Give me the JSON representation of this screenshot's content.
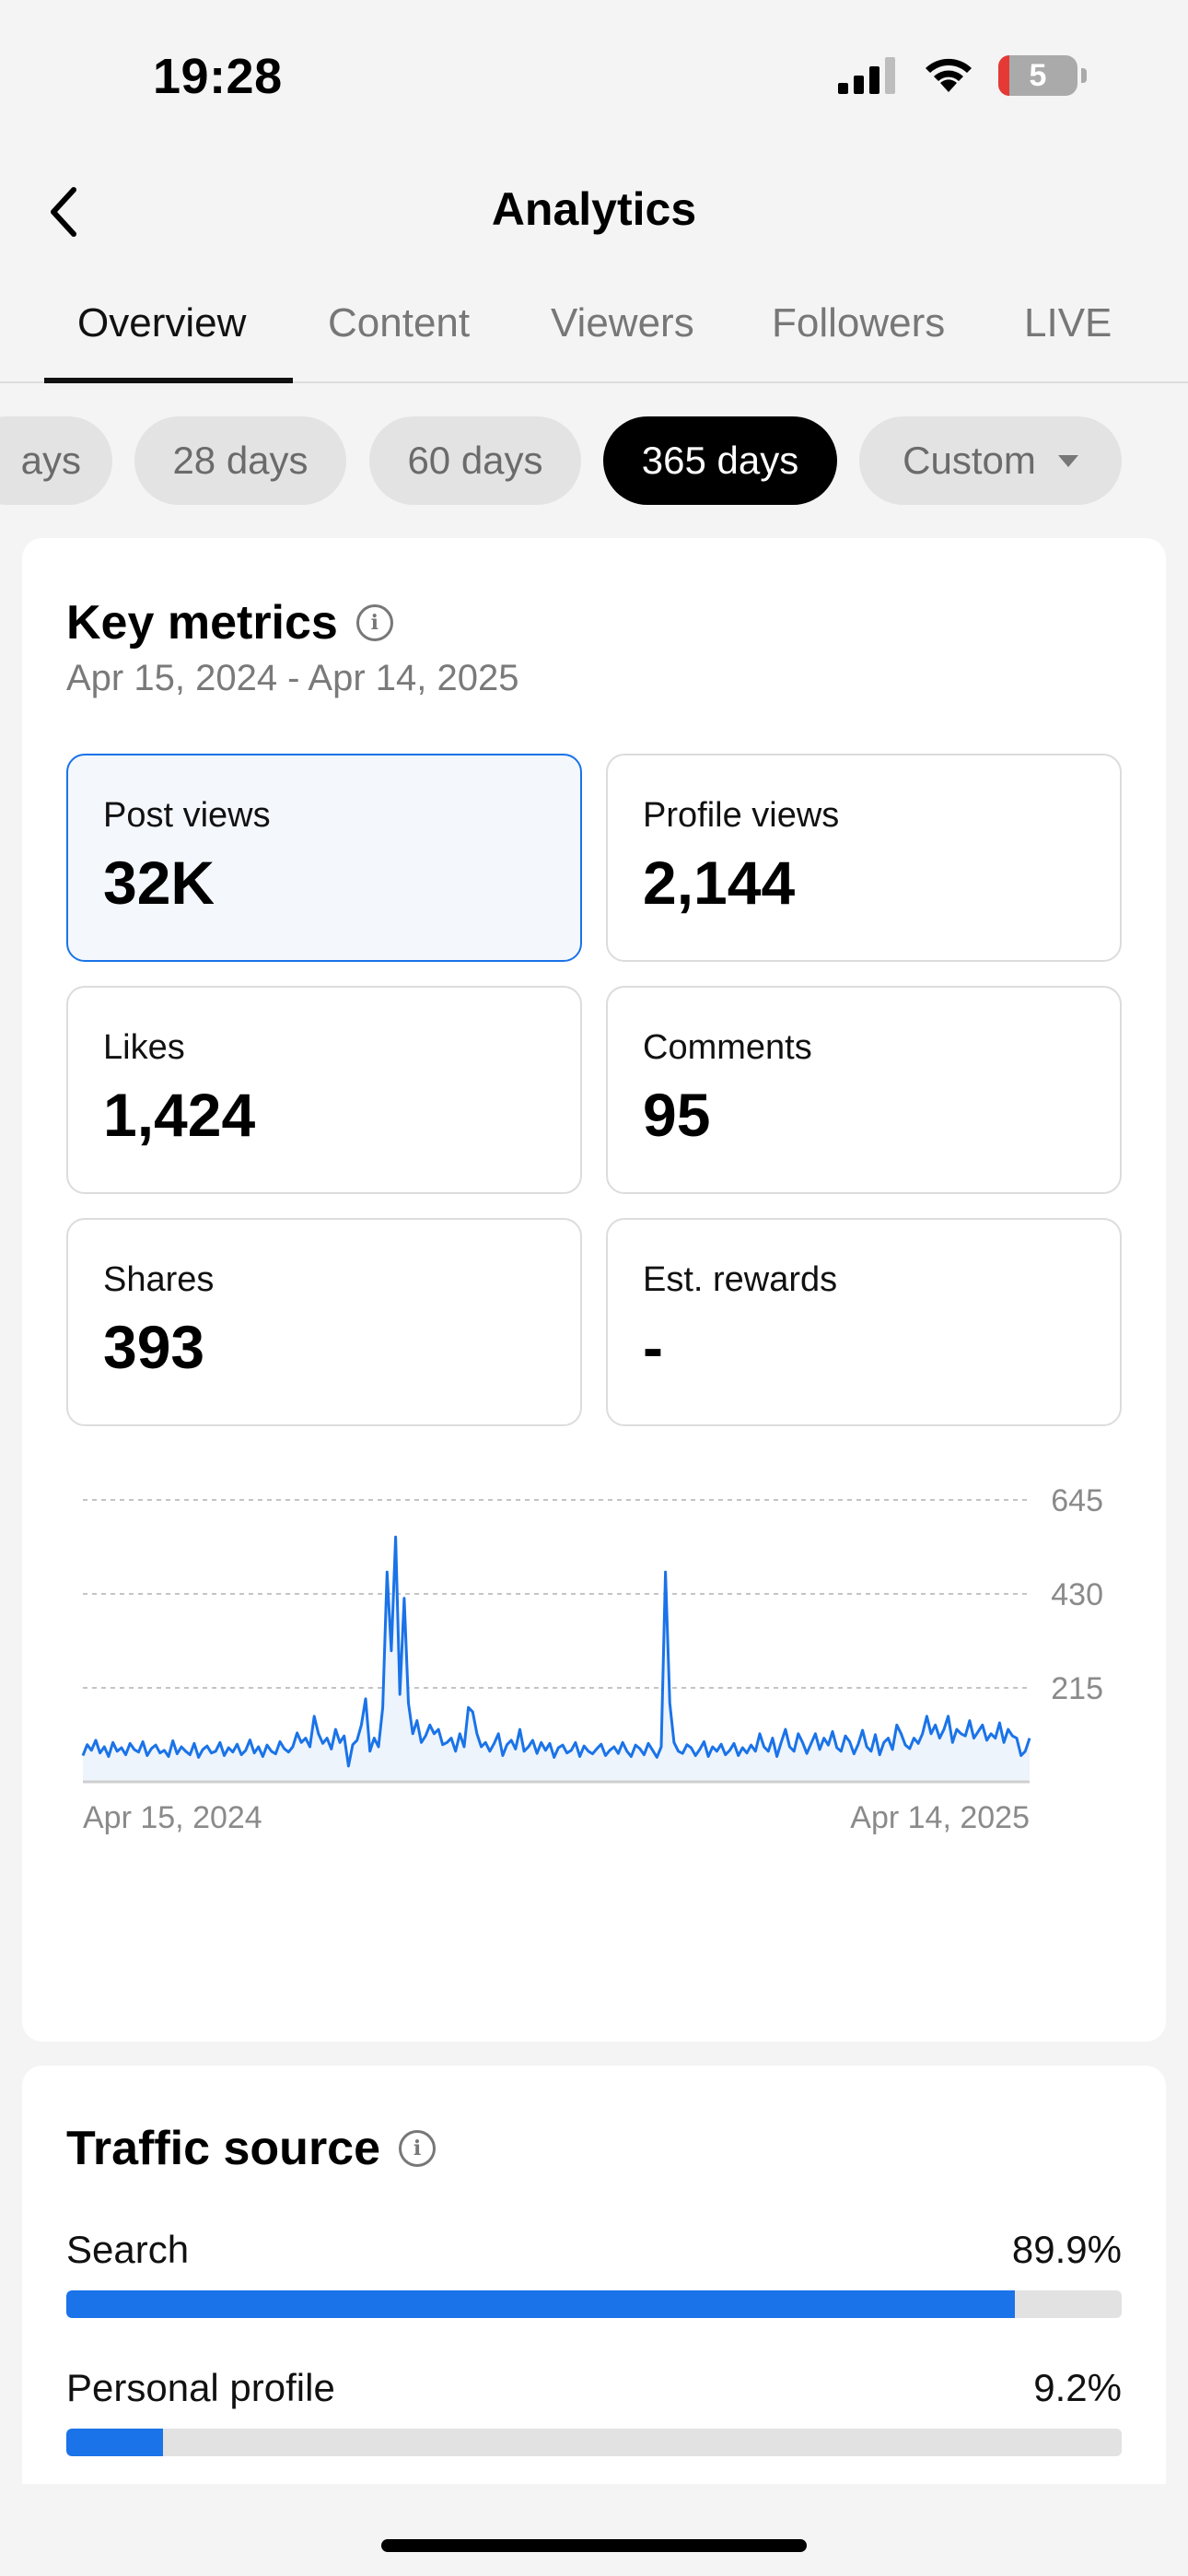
{
  "status": {
    "time": "19:28",
    "battery": "5",
    "signal_icon": "cellular-signal-icon",
    "wifi_icon": "wifi-icon"
  },
  "header": {
    "title": "Analytics",
    "back_icon": "chevron-left-icon"
  },
  "tabs": [
    {
      "label": "Overview",
      "active": true
    },
    {
      "label": "Content"
    },
    {
      "label": "Viewers"
    },
    {
      "label": "Followers"
    },
    {
      "label": "LIVE"
    }
  ],
  "ranges": [
    {
      "label": "ays"
    },
    {
      "label": "28 days"
    },
    {
      "label": "60 days"
    },
    {
      "label": "365 days",
      "active": true
    },
    {
      "label": "Custom"
    }
  ],
  "key_metrics": {
    "title": "Key metrics",
    "date_range": "Apr 15, 2024 - Apr 14, 2025",
    "items": [
      {
        "label": "Post views",
        "value": "32K",
        "selected": true
      },
      {
        "label": "Profile views",
        "value": "2,144"
      },
      {
        "label": "Likes",
        "value": "1,424"
      },
      {
        "label": "Comments",
        "value": "95"
      },
      {
        "label": "Shares",
        "value": "393"
      },
      {
        "label": "Est. rewards",
        "value": "-"
      }
    ]
  },
  "chart_data": {
    "type": "area",
    "title": "",
    "xlabel": "",
    "ylabel": "",
    "x_range": [
      "Apr 15, 2024",
      "Apr 14, 2025"
    ],
    "x_tick_labels": [
      "Apr 15, 2024",
      "Apr 14, 2025"
    ],
    "y_ticks": [
      215,
      430,
      645
    ],
    "y_tick_labels": [
      "215",
      "430",
      "645"
    ],
    "ylim": [
      0,
      645
    ],
    "grid": true,
    "line_color": "#1a73e8",
    "fill_color": "#eef4fc",
    "series": [
      {
        "values": [
          60,
          85,
          72,
          95,
          66,
          80,
          58,
          90,
          70,
          78,
          62,
          88,
          74,
          68,
          92,
          60,
          76,
          84,
          66,
          72,
          58,
          94,
          64,
          80,
          70,
          62,
          88,
          56,
          74,
          82,
          66,
          70,
          90,
          60,
          78,
          68,
          86,
          62,
          72,
          96,
          66,
          80,
          58,
          84,
          70,
          64,
          92,
          76,
          68,
          80,
          112,
          90,
          100,
          80,
          150,
          110,
          88,
          100,
          75,
          120,
          90,
          105,
          36,
          85,
          95,
          130,
          190,
          70,
          100,
          80,
          170,
          480,
          300,
          560,
          200,
          420,
          180,
          110,
          140,
          90,
          105,
          130,
          110,
          120,
          85,
          90,
          100,
          70,
          110,
          80,
          170,
          160,
          110,
          80,
          90,
          70,
          88,
          110,
          60,
          85,
          95,
          75,
          120,
          70,
          80,
          95,
          65,
          90,
          72,
          88,
          56,
          78,
          84,
          66,
          72,
          90,
          58,
          82,
          70,
          64,
          76,
          86,
          60,
          72,
          80,
          65,
          90,
          70,
          58,
          84,
          76,
          62,
          88,
          72,
          56,
          80,
          480,
          180,
          90,
          70,
          65,
          85,
          78,
          60,
          74,
          92,
          58,
          80,
          70,
          86,
          62,
          72,
          88,
          60,
          78,
          66,
          84,
          70,
          110,
          80,
          70,
          100,
          58,
          90,
          120,
          80,
          70,
          110,
          90,
          65,
          88,
          110,
          74,
          100,
          84,
          115,
          78,
          70,
          105,
          92,
          64,
          86,
          118,
          80,
          70,
          108,
          62,
          90,
          100,
          74,
          130,
          110,
          84,
          76,
          100,
          88,
          110,
          150,
          110,
          130,
          100,
          120,
          150,
          90,
          120,
          110,
          105,
          140,
          100,
          115,
          130,
          95,
          110,
          100,
          135,
          90,
          120,
          105,
          100,
          60,
          70,
          100
        ]
      }
    ]
  },
  "traffic_source": {
    "title": "Traffic source",
    "rows": [
      {
        "label": "Search",
        "value": "89.9%",
        "fraction": 0.899
      },
      {
        "label": "Personal profile",
        "value": "9.2%",
        "fraction": 0.092
      }
    ]
  },
  "colors": {
    "accent": "#1a73e8",
    "background": "#f4f4f4"
  }
}
